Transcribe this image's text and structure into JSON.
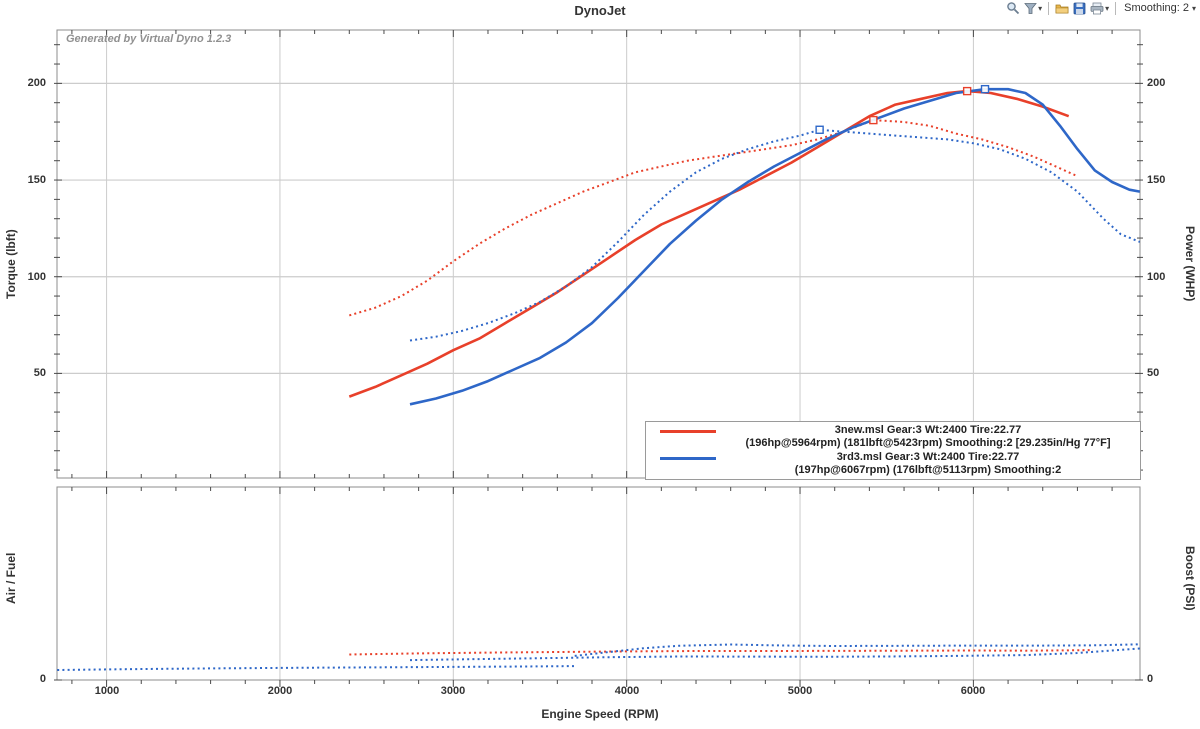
{
  "header": {
    "title": "DynoJet"
  },
  "toolbar": {
    "smoothing_label": "Smoothing: 2",
    "caret": "▾",
    "icons": [
      "zoom",
      "filter",
      "open",
      "save",
      "print"
    ]
  },
  "legend": {
    "entries": [
      {
        "color": "#e8402a",
        "line1": "3new.msl Gear:3 Wt:2400 Tire:22.77",
        "line2": "(196hp@5964rpm) (181lbft@5423rpm) Smoothing:2 [29.235in/Hg 77°F]"
      },
      {
        "color": "#2e67c8",
        "line1": "3rd3.msl Gear:3 Wt:2400 Tire:22.77",
        "line2": "(197hp@6067rpm) (176lbft@5113rpm) Smoothing:2"
      }
    ]
  },
  "chart_data": {
    "top_panel": {
      "type": "line",
      "xlabel": "Engine Speed (RPM)",
      "ylabel_left": "Torque (lbft)",
      "ylabel_right": "Power (WHP)",
      "annotation": "Generated by Virtual Dyno 1.2.3",
      "xlim": [
        714,
        6961
      ],
      "ylim": [
        -4.1,
        227.6
      ],
      "x_ticks": [
        1000,
        2000,
        3000,
        4000,
        5000,
        6000
      ],
      "x_minor_step": 200,
      "y_ticks": [
        50,
        100,
        150,
        200
      ],
      "y_minor_step": 10,
      "grid": true,
      "series": [
        {
          "name": "3new.msl power (WHP)",
          "color": "#e8402a",
          "style": "solid",
          "peak": [
            5964,
            196
          ],
          "points": [
            [
              2400,
              38
            ],
            [
              2550,
              43
            ],
            [
              2700,
              49
            ],
            [
              2850,
              55
            ],
            [
              3000,
              62
            ],
            [
              3150,
              68
            ],
            [
              3300,
              76
            ],
            [
              3450,
              84
            ],
            [
              3600,
              92
            ],
            [
              3750,
              101
            ],
            [
              3900,
              110
            ],
            [
              4050,
              119
            ],
            [
              4200,
              127
            ],
            [
              4350,
              133
            ],
            [
              4500,
              139
            ],
            [
              4650,
              145
            ],
            [
              4800,
              152
            ],
            [
              4950,
              159
            ],
            [
              5100,
              167
            ],
            [
              5250,
              175
            ],
            [
              5400,
              183
            ],
            [
              5550,
              189
            ],
            [
              5700,
              192
            ],
            [
              5850,
              195
            ],
            [
              5964,
              196
            ],
            [
              6100,
              195
            ],
            [
              6250,
              192
            ],
            [
              6400,
              188
            ],
            [
              6550,
              183
            ]
          ]
        },
        {
          "name": "3new.msl torque (lbft)",
          "color": "#e8402a",
          "style": "dotted",
          "peak": [
            5423,
            181
          ],
          "points": [
            [
              2400,
              80
            ],
            [
              2550,
              84
            ],
            [
              2700,
              90
            ],
            [
              2850,
              98
            ],
            [
              3000,
              108
            ],
            [
              3150,
              117
            ],
            [
              3300,
              125
            ],
            [
              3450,
              132
            ],
            [
              3600,
              138
            ],
            [
              3750,
              144
            ],
            [
              3900,
              149
            ],
            [
              4050,
              154
            ],
            [
              4200,
              157
            ],
            [
              4350,
              160
            ],
            [
              4500,
              162
            ],
            [
              4650,
              164
            ],
            [
              4800,
              166
            ],
            [
              4950,
              168
            ],
            [
              5100,
              171
            ],
            [
              5250,
              175
            ],
            [
              5423,
              181
            ],
            [
              5600,
              180
            ],
            [
              5750,
              178
            ],
            [
              5900,
              174
            ],
            [
              6050,
              171
            ],
            [
              6200,
              167
            ],
            [
              6350,
              162
            ],
            [
              6500,
              156
            ],
            [
              6600,
              152
            ]
          ]
        },
        {
          "name": "3rd3.msl power (WHP)",
          "color": "#2e67c8",
          "style": "solid",
          "peak": [
            6067,
            197
          ],
          "points": [
            [
              2750,
              34
            ],
            [
              2900,
              37
            ],
            [
              3050,
              41
            ],
            [
              3200,
              46
            ],
            [
              3350,
              52
            ],
            [
              3500,
              58
            ],
            [
              3650,
              66
            ],
            [
              3800,
              76
            ],
            [
              3950,
              89
            ],
            [
              4100,
              103
            ],
            [
              4250,
              117
            ],
            [
              4400,
              129
            ],
            [
              4550,
              140
            ],
            [
              4700,
              149
            ],
            [
              4850,
              157
            ],
            [
              5000,
              164
            ],
            [
              5150,
              171
            ],
            [
              5300,
              177
            ],
            [
              5450,
              182
            ],
            [
              5600,
              187
            ],
            [
              5750,
              191
            ],
            [
              5900,
              195
            ],
            [
              6067,
              197
            ],
            [
              6200,
              197
            ],
            [
              6300,
              195
            ],
            [
              6400,
              189
            ],
            [
              6500,
              178
            ],
            [
              6600,
              166
            ],
            [
              6700,
              155
            ],
            [
              6800,
              149
            ],
            [
              6900,
              145
            ],
            [
              6960,
              144
            ]
          ]
        },
        {
          "name": "3rd3.msl torque (lbft)",
          "color": "#2e67c8",
          "style": "dotted",
          "peak": [
            5113,
            176
          ],
          "points": [
            [
              2750,
              67
            ],
            [
              2900,
              69
            ],
            [
              3050,
              72
            ],
            [
              3200,
              76
            ],
            [
              3350,
              81
            ],
            [
              3500,
              87
            ],
            [
              3650,
              95
            ],
            [
              3800,
              105
            ],
            [
              3950,
              118
            ],
            [
              4100,
              132
            ],
            [
              4250,
              144
            ],
            [
              4400,
              154
            ],
            [
              4550,
              161
            ],
            [
              4700,
              166
            ],
            [
              4850,
              170
            ],
            [
              5000,
              173
            ],
            [
              5113,
              176
            ],
            [
              5250,
              175
            ],
            [
              5400,
              174
            ],
            [
              5550,
              173
            ],
            [
              5700,
              172
            ],
            [
              5850,
              171
            ],
            [
              6000,
              169
            ],
            [
              6150,
              166
            ],
            [
              6300,
              161
            ],
            [
              6450,
              154
            ],
            [
              6600,
              144
            ],
            [
              6750,
              130
            ],
            [
              6850,
              122
            ],
            [
              6960,
              118
            ]
          ]
        }
      ]
    },
    "bottom_panel": {
      "type": "line",
      "ylabel_left": "Air / Fuel",
      "ylabel_right": "Boost (PSI)",
      "xlim": [
        714,
        6961
      ],
      "ylim": [
        0,
        100
      ],
      "x_ticks": [
        1000,
        2000,
        3000,
        4000,
        5000,
        6000
      ],
      "x_minor_step": 200,
      "y_ticks": [
        0
      ],
      "grid": false,
      "series": [
        {
          "name": "3rd3 low trace",
          "color": "#2e67c8",
          "style": "dotted",
          "points": [
            [
              715,
              5.2
            ],
            [
              1100,
              5.6
            ],
            [
              1600,
              6.0
            ],
            [
              2100,
              6.3
            ],
            [
              2600,
              6.6
            ],
            [
              3000,
              6.8
            ],
            [
              3400,
              7.0
            ],
            [
              3700,
              7.2
            ]
          ]
        },
        {
          "name": "3new air/fuel",
          "color": "#e8402a",
          "style": "dotted",
          "points": [
            [
              2400,
              13.2
            ],
            [
              2800,
              13.8
            ],
            [
              3200,
              14.2
            ],
            [
              3600,
              14.5
            ],
            [
              4000,
              14.8
            ],
            [
              4400,
              15.0
            ],
            [
              4800,
              15.0
            ],
            [
              5200,
              15.1
            ],
            [
              5600,
              15.2
            ],
            [
              6000,
              15.3
            ],
            [
              6300,
              15.2
            ],
            [
              6690,
              15.5
            ]
          ]
        },
        {
          "name": "3rd3 air/fuel",
          "color": "#2e67c8",
          "style": "dotted",
          "points": [
            [
              2750,
              10.3
            ],
            [
              3100,
              10.8
            ],
            [
              3500,
              11.3
            ],
            [
              3900,
              11.8
            ],
            [
              4300,
              12.2
            ],
            [
              4700,
              12.1
            ],
            [
              5100,
              12.0
            ],
            [
              5500,
              12.2
            ],
            [
              5900,
              12.5
            ],
            [
              6300,
              12.9
            ],
            [
              6600,
              14.0
            ],
            [
              6960,
              16.3
            ]
          ]
        },
        {
          "name": "3rd3 boost",
          "color": "#2e67c8",
          "style": "dotted",
          "points": [
            [
              3700,
              12.5
            ],
            [
              3900,
              14.5
            ],
            [
              4100,
              16.5
            ],
            [
              4300,
              17.7
            ],
            [
              4600,
              18.4
            ],
            [
              4900,
              17.9
            ],
            [
              5200,
              17.6
            ],
            [
              5600,
              17.7
            ],
            [
              6000,
              17.8
            ],
            [
              6400,
              17.8
            ],
            [
              6700,
              18.0
            ],
            [
              6960,
              18.5
            ]
          ]
        }
      ]
    }
  }
}
